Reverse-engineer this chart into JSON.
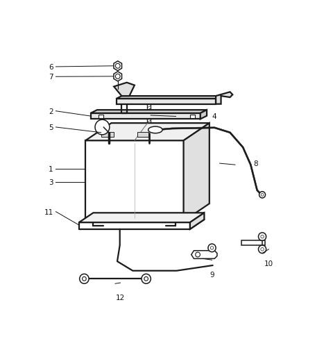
{
  "background_color": "#ffffff",
  "line_color": "#1a1a1a",
  "label_color": "#111111",
  "label_fontsize": 7.5,
  "lw_main": 1.1,
  "lw_thick": 1.6,
  "lw_thin": 0.7,
  "battery": {
    "bx": 0.17,
    "by": 0.33,
    "bw": 0.38,
    "bh": 0.3,
    "ox": 0.1,
    "oy": 0.065
  },
  "labels": {
    "1": [
      0.055,
      0.525,
      0.175,
      0.525
    ],
    "2": [
      0.055,
      0.74,
      0.175,
      0.74
    ],
    "3": [
      0.055,
      0.475,
      0.175,
      0.475
    ],
    "4": [
      0.52,
      0.72,
      0.65,
      0.72
    ],
    "5": [
      0.055,
      0.68,
      0.175,
      0.68
    ],
    "6": [
      0.055,
      0.905,
      0.175,
      0.905
    ],
    "7": [
      0.055,
      0.868,
      0.175,
      0.868
    ],
    "8": [
      0.69,
      0.545,
      0.81,
      0.545
    ],
    "9": [
      0.66,
      0.185,
      0.66,
      0.155
    ],
    "10": [
      0.88,
      0.225,
      0.88,
      0.195
    ],
    "11": [
      0.055,
      0.365,
      0.145,
      0.365
    ],
    "12": [
      0.305,
      0.1,
      0.305,
      0.07
    ]
  }
}
